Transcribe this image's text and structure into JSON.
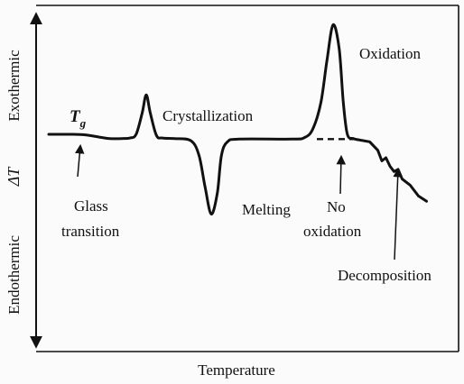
{
  "chart_data": {
    "type": "line",
    "title": "",
    "xlabel": "Temperature",
    "ylabel_top": "Exothermic",
    "ylabel_center": "ΔT",
    "ylabel_bottom": "Endothermic",
    "x_ticks": [],
    "y_ticks": [],
    "grid": false,
    "legend": "none",
    "series": [
      {
        "values_description_free": true,
        "style": "solid",
        "points": [
          [
            0,
            0.0
          ],
          [
            5,
            0.0
          ],
          [
            9,
            -0.05
          ],
          [
            13,
            -0.3
          ],
          [
            15,
            -0.4
          ],
          [
            18,
            -0.4
          ],
          [
            20,
            -0.35
          ],
          [
            21.5,
            0.0
          ],
          [
            23,
            2.0
          ],
          [
            24,
            3.7
          ],
          [
            25,
            2.0
          ],
          [
            26.5,
            -0.1
          ],
          [
            28,
            -0.35
          ],
          [
            31,
            -0.4
          ],
          [
            35,
            -0.6
          ],
          [
            37,
            -2.0
          ],
          [
            38.5,
            -5.0
          ],
          [
            40,
            -7.5
          ],
          [
            41.5,
            -5.5
          ],
          [
            42.5,
            -2.0
          ],
          [
            44,
            -0.7
          ],
          [
            47,
            -0.45
          ],
          [
            60,
            -0.45
          ],
          [
            63,
            -0.3
          ],
          [
            65,
            0.5
          ],
          [
            67,
            3.0
          ],
          [
            68.5,
            7.0
          ],
          [
            70,
            10.3
          ],
          [
            71.5,
            8.0
          ],
          [
            72.5,
            3.0
          ],
          [
            73.5,
            0.0
          ],
          [
            75,
            -0.4
          ],
          [
            76,
            -0.5
          ]
        ]
      },
      {
        "style": "dashed",
        "points": [
          [
            66,
            -0.45
          ],
          [
            76,
            -0.45
          ]
        ]
      },
      {
        "style": "solid",
        "points": [
          [
            76,
            -0.5
          ],
          [
            79,
            -0.7
          ],
          [
            81,
            -1.5
          ],
          [
            82,
            -2.5
          ],
          [
            83,
            -2.2
          ],
          [
            84,
            -3.0
          ],
          [
            85,
            -3.5
          ],
          [
            86,
            -3.3
          ],
          [
            87,
            -4.2
          ],
          [
            89,
            -4.8
          ],
          [
            91,
            -5.8
          ],
          [
            93,
            -6.3
          ]
        ]
      }
    ],
    "annotations": {
      "tg_symbol": "T",
      "tg_subscript": "g",
      "glass_line1": "Glass",
      "glass_line2": "transition",
      "crystallization": "Crystallization",
      "melting": "Melting",
      "oxidation": "Oxidation",
      "no_oxidation_line1": "No",
      "no_oxidation_line2": "oxidation",
      "decomposition": "Decomposition"
    }
  }
}
